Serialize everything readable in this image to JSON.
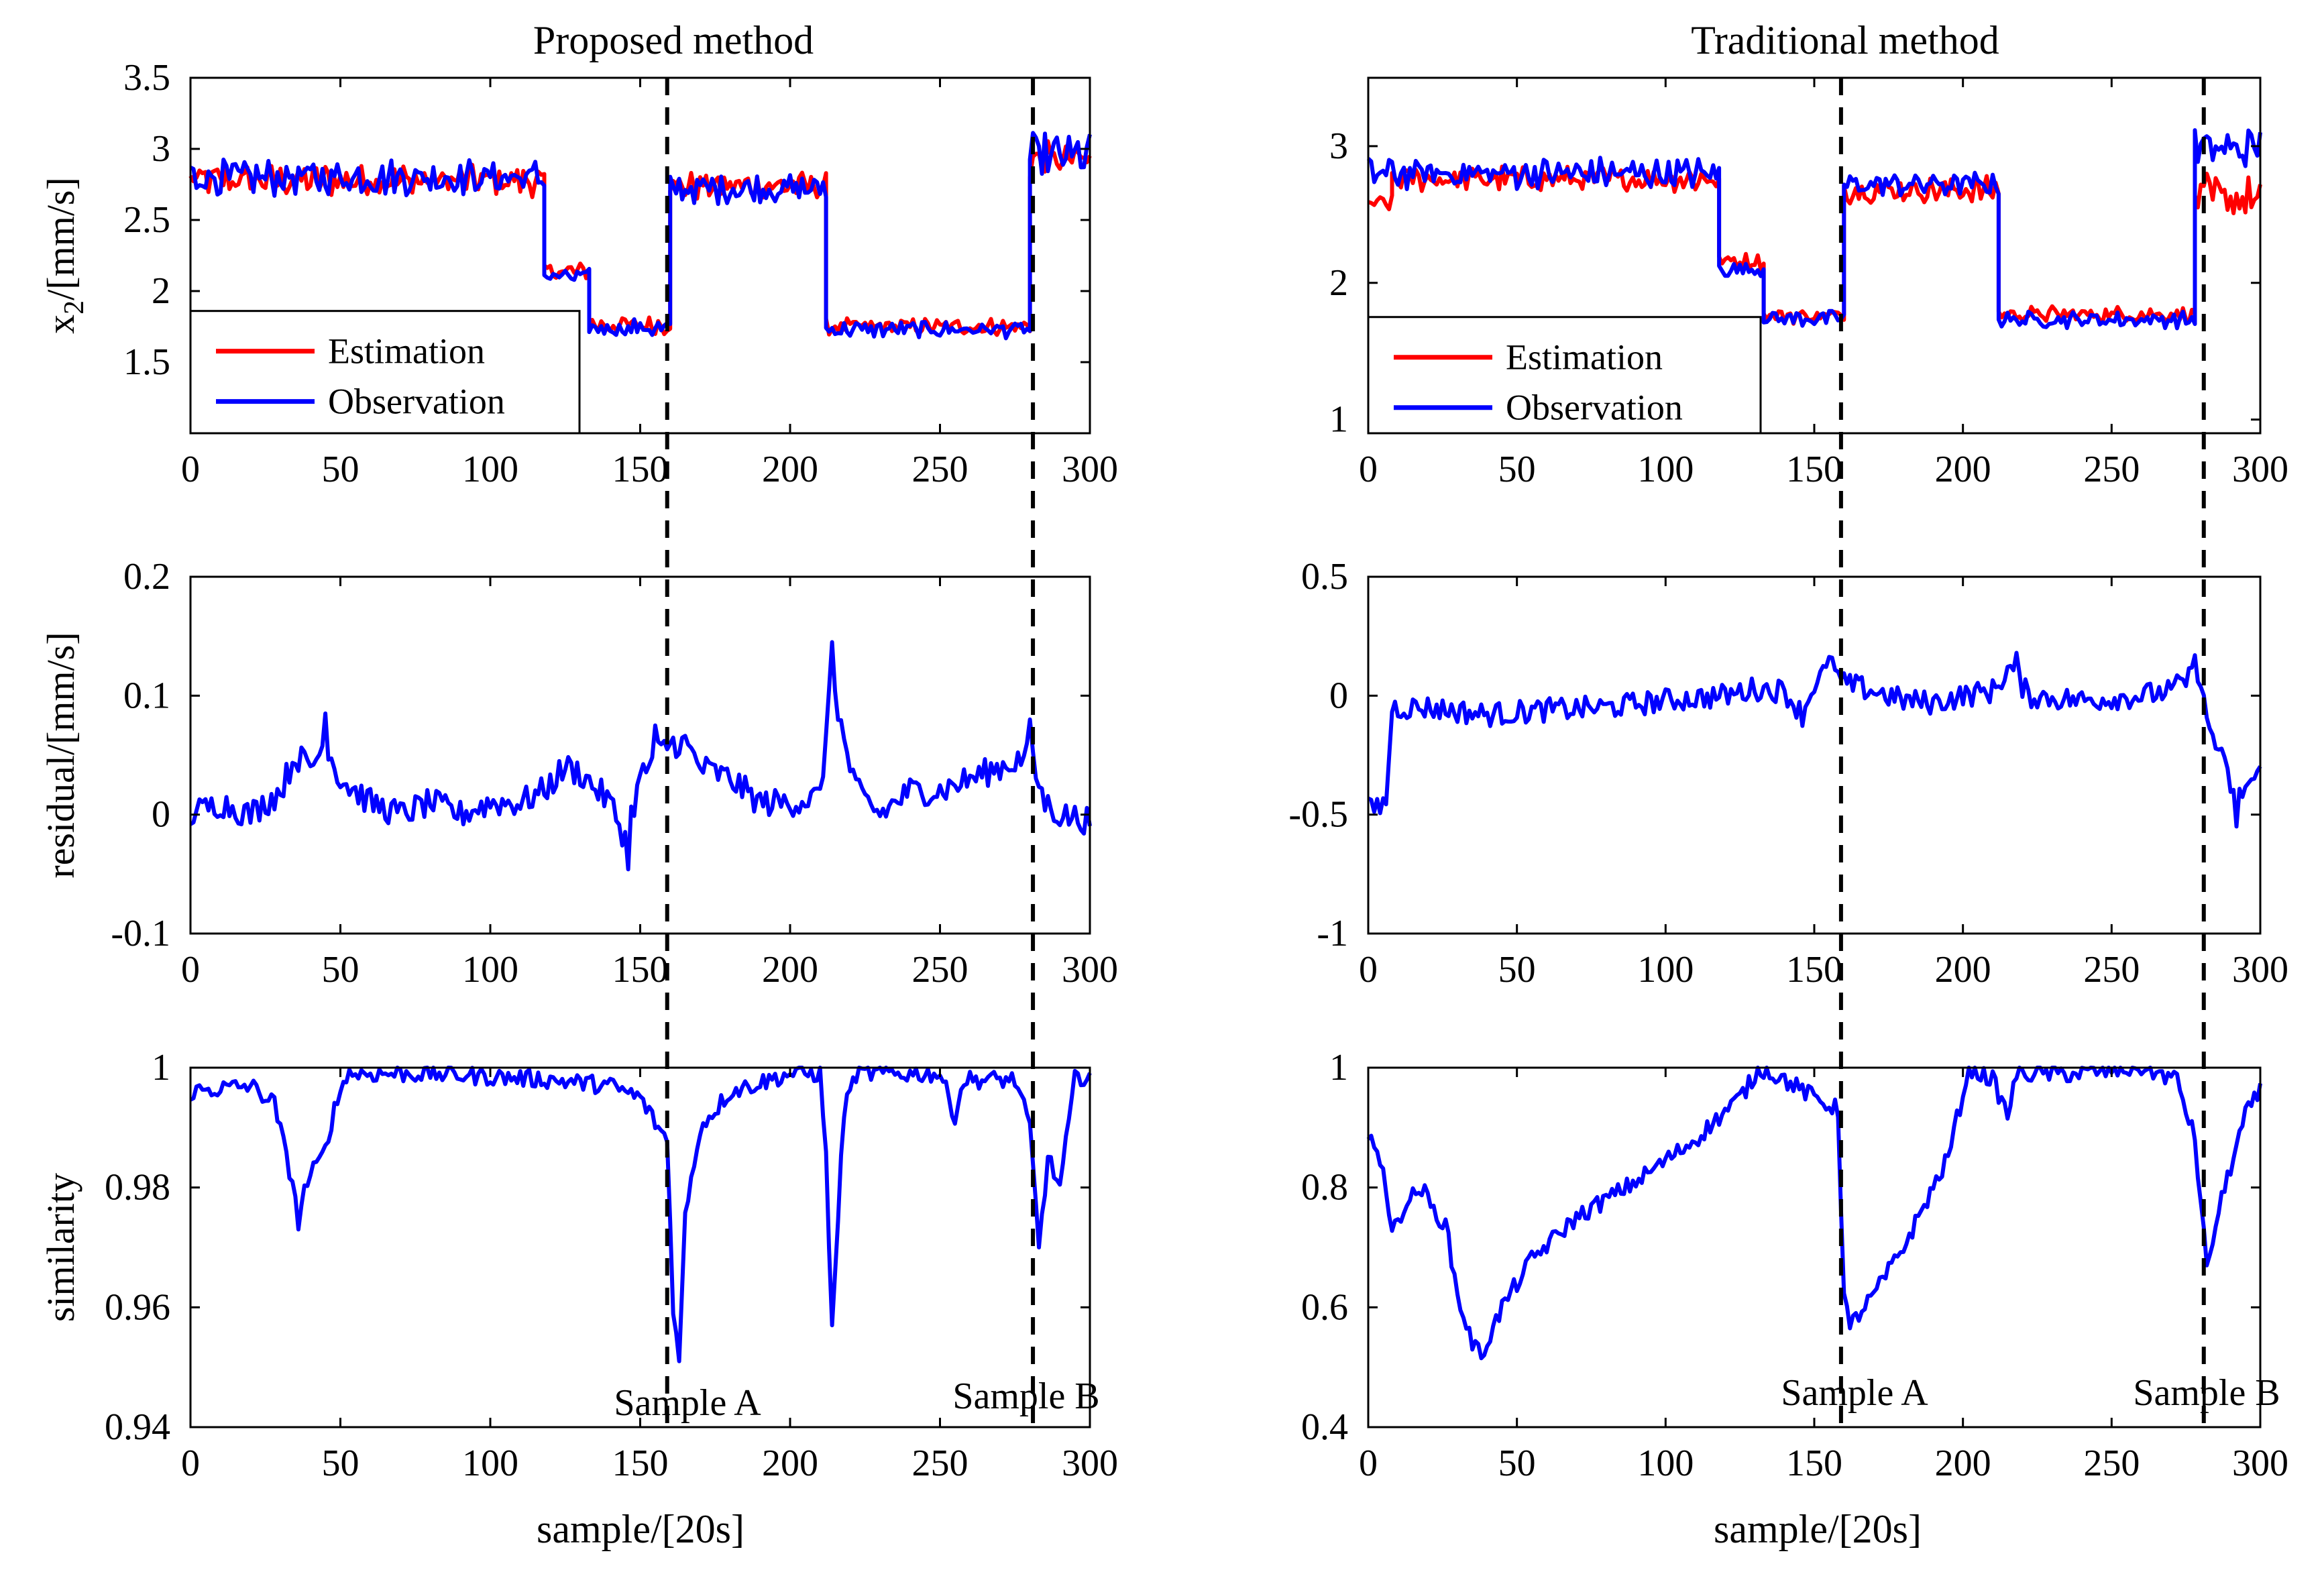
{
  "figure": {
    "title_left": "Proposed method",
    "title_right": "Traditional method",
    "xlabel": "sample/[20s]",
    "sample_a_label": "Sample A",
    "sample_b_label": "Sample B",
    "marker_x": [
      159,
      281
    ],
    "colors": {
      "estimation": "#ff0000",
      "observation": "#0000ff",
      "marker": "#000000"
    }
  },
  "chart_data": [
    {
      "id": "proposed-x2",
      "type": "line",
      "title": "Proposed method",
      "ylabel": "x_2/[mm/s]",
      "xlim": [
        0,
        300
      ],
      "ylim": [
        1.0,
        3.5
      ],
      "xticks": [
        0,
        50,
        100,
        150,
        200,
        250,
        300
      ],
      "yticks": [
        1.5,
        2,
        2.5,
        3,
        3.5
      ],
      "legend": {
        "position": "lower-left",
        "entries": [
          "Estimation",
          "Observation"
        ]
      },
      "series": [
        {
          "name": "Estimation",
          "color": "#ff0000",
          "segments": [
            [
              0,
              118,
              2.78,
              0.12
            ],
            [
              118,
              133,
              2.14,
              0.06
            ],
            [
              133,
              160,
              1.76,
              0.07
            ],
            [
              160,
              212,
              2.74,
              0.1
            ],
            [
              212,
              280,
              1.75,
              0.06
            ],
            [
              280,
              300,
              2.92,
              0.14
            ]
          ]
        },
        {
          "name": "Observation",
          "color": "#0000ff",
          "segments": [
            [
              0,
              118,
              2.8,
              0.13
            ],
            [
              118,
              133,
              2.1,
              0.06
            ],
            [
              133,
              160,
              1.74,
              0.07
            ],
            [
              160,
              212,
              2.72,
              0.11
            ],
            [
              212,
              280,
              1.73,
              0.06
            ],
            [
              280,
              300,
              2.95,
              0.16
            ]
          ]
        }
      ]
    },
    {
      "id": "traditional-x2",
      "type": "line",
      "title": "Traditional method",
      "ylabel": "",
      "xlim": [
        0,
        300
      ],
      "ylim": [
        0.9,
        3.5
      ],
      "xticks": [
        0,
        50,
        100,
        150,
        200,
        250,
        300
      ],
      "yticks": [
        1,
        2,
        3
      ],
      "legend": {
        "position": "lower-left",
        "entries": [
          "Estimation",
          "Observation"
        ]
      },
      "series": [
        {
          "name": "Estimation",
          "color": "#ff0000",
          "segments": [
            [
              0,
              8,
              2.58,
              0.06
            ],
            [
              8,
              118,
              2.76,
              0.1
            ],
            [
              118,
              133,
              2.16,
              0.06
            ],
            [
              133,
              160,
              1.76,
              0.06
            ],
            [
              160,
              212,
              2.68,
              0.1
            ],
            [
              212,
              278,
              1.77,
              0.06
            ],
            [
              278,
              300,
              2.62,
              0.18
            ]
          ]
        },
        {
          "name": "Observation",
          "color": "#0000ff",
          "segments": [
            [
              0,
              118,
              2.8,
              0.12
            ],
            [
              118,
              133,
              2.1,
              0.06
            ],
            [
              133,
              160,
              1.74,
              0.06
            ],
            [
              160,
              212,
              2.72,
              0.1
            ],
            [
              212,
              278,
              1.73,
              0.06
            ],
            [
              278,
              300,
              2.98,
              0.16
            ]
          ]
        }
      ]
    },
    {
      "id": "proposed-residual",
      "type": "line",
      "title": "",
      "ylabel": "residual/[mm/s]",
      "xlim": [
        0,
        300
      ],
      "ylim": [
        -0.1,
        0.2
      ],
      "xticks": [
        0,
        50,
        100,
        150,
        200,
        250,
        300
      ],
      "yticks": [
        -0.1,
        0,
        0.1,
        0.2
      ],
      "series": [
        {
          "name": "Residual",
          "color": "#0000ff",
          "anchors": [
            [
              0,
              0
            ],
            [
              10,
              0.01
            ],
            [
              20,
              0.0
            ],
            [
              30,
              0.02
            ],
            [
              35,
              0.05
            ],
            [
              40,
              0.04
            ],
            [
              45,
              0.06
            ],
            [
              50,
              0.03
            ],
            [
              60,
              0.01
            ],
            [
              70,
              0.0
            ],
            [
              80,
              0.01
            ],
            [
              90,
              0.0
            ],
            [
              100,
              0.01
            ],
            [
              110,
              0.01
            ],
            [
              118,
              0.02
            ],
            [
              125,
              0.04
            ],
            [
              130,
              0.035
            ],
            [
              140,
              0.01
            ],
            [
              145,
              -0.02
            ],
            [
              150,
              0.03
            ],
            [
              155,
              0.05
            ],
            [
              160,
              0.06
            ],
            [
              165,
              0.06
            ],
            [
              170,
              0.04
            ],
            [
              180,
              0.03
            ],
            [
              190,
              0.01
            ],
            [
              200,
              0.01
            ],
            [
              210,
              0.015
            ],
            [
              214,
              0.12
            ],
            [
              218,
              0.06
            ],
            [
              222,
              0.02
            ],
            [
              230,
              0.0
            ],
            [
              240,
              0.02
            ],
            [
              250,
              0.02
            ],
            [
              260,
              0.03
            ],
            [
              270,
              0.04
            ],
            [
              280,
              0.05
            ],
            [
              285,
              0.01
            ],
            [
              290,
              0.0
            ],
            [
              300,
              -0.005
            ]
          ],
          "noise": 0.012,
          "spikes": [
            [
              214,
              0.145
            ],
            [
              146,
              -0.046
            ],
            [
              280,
              0.08
            ],
            [
              155,
              0.075
            ],
            [
              45,
              0.085
            ]
          ]
        }
      ]
    },
    {
      "id": "traditional-residual",
      "type": "line",
      "title": "",
      "ylabel": "",
      "xlim": [
        0,
        300
      ],
      "ylim": [
        -1,
        0.5
      ],
      "xticks": [
        0,
        50,
        100,
        150,
        200,
        250,
        300
      ],
      "yticks": [
        -1,
        -0.5,
        0,
        0.5
      ],
      "series": [
        {
          "name": "Residual",
          "color": "#0000ff",
          "anchors": [
            [
              0,
              -0.48
            ],
            [
              6,
              -0.45
            ],
            [
              8,
              -0.05
            ],
            [
              20,
              -0.05
            ],
            [
              40,
              -0.08
            ],
            [
              60,
              -0.06
            ],
            [
              80,
              -0.05
            ],
            [
              100,
              -0.02
            ],
            [
              120,
              0.0
            ],
            [
              130,
              0.03
            ],
            [
              140,
              0.02
            ],
            [
              146,
              -0.08
            ],
            [
              150,
              0.05
            ],
            [
              155,
              0.12
            ],
            [
              160,
              0.05
            ],
            [
              170,
              0.02
            ],
            [
              180,
              -0.02
            ],
            [
              190,
              -0.03
            ],
            [
              200,
              0.0
            ],
            [
              210,
              0.02
            ],
            [
              216,
              0.12
            ],
            [
              222,
              0.0
            ],
            [
              240,
              -0.02
            ],
            [
              260,
              0.0
            ],
            [
              270,
              0.02
            ],
            [
              279,
              0.1
            ],
            [
              282,
              -0.1
            ],
            [
              288,
              -0.3
            ],
            [
              292,
              -0.45
            ],
            [
              295,
              -0.38
            ],
            [
              300,
              -0.33
            ]
          ],
          "noise": 0.05,
          "spikes": [
            [
              218,
              0.18
            ],
            [
              278,
              0.17
            ],
            [
              292,
              -0.55
            ],
            [
              156,
              0.16
            ]
          ]
        }
      ]
    },
    {
      "id": "proposed-similarity",
      "type": "line",
      "title": "",
      "ylabel": "similarity",
      "xlim": [
        0,
        300
      ],
      "ylim": [
        0.94,
        1.0
      ],
      "xticks": [
        0,
        50,
        100,
        150,
        200,
        250,
        300
      ],
      "yticks": [
        0.94,
        0.96,
        0.98,
        1
      ],
      "series": [
        {
          "name": "Similarity",
          "color": "#0000ff",
          "anchors": [
            [
              0,
              0.996
            ],
            [
              20,
              0.997
            ],
            [
              28,
              0.994
            ],
            [
              32,
              0.985
            ],
            [
              36,
              0.977
            ],
            [
              40,
              0.982
            ],
            [
              44,
              0.985
            ],
            [
              48,
              0.993
            ],
            [
              52,
              0.999
            ],
            [
              80,
              0.999
            ],
            [
              120,
              0.998
            ],
            [
              140,
              0.997
            ],
            [
              150,
              0.995
            ],
            [
              156,
              0.99
            ],
            [
              159,
              0.988
            ],
            [
              161,
              0.96
            ],
            [
              163,
              0.951
            ],
            [
              165,
              0.975
            ],
            [
              170,
              0.99
            ],
            [
              180,
              0.996
            ],
            [
              200,
              0.999
            ],
            [
              210,
              0.999
            ],
            [
              212,
              0.985
            ],
            [
              214,
              0.957
            ],
            [
              216,
              0.975
            ],
            [
              218,
              0.993
            ],
            [
              222,
              0.999
            ],
            [
              250,
              0.999
            ],
            [
              255,
              0.992
            ],
            [
              258,
              0.998
            ],
            [
              275,
              0.998
            ],
            [
              280,
              0.99
            ],
            [
              283,
              0.97
            ],
            [
              286,
              0.985
            ],
            [
              290,
              0.98
            ],
            [
              295,
              0.998
            ],
            [
              300,
              0.999
            ]
          ],
          "noise": 0.0015,
          "spikes": [
            [
              163,
              0.951
            ],
            [
              214,
              0.957
            ],
            [
              36,
              0.973
            ],
            [
              283,
              0.97
            ]
          ]
        }
      ]
    },
    {
      "id": "traditional-similarity",
      "type": "line",
      "title": "",
      "ylabel": "",
      "xlim": [
        0,
        300
      ],
      "ylim": [
        0.4,
        1.0
      ],
      "xticks": [
        0,
        50,
        100,
        150,
        200,
        250,
        300
      ],
      "yticks": [
        0.4,
        0.6,
        0.8,
        1
      ],
      "series": [
        {
          "name": "Similarity",
          "color": "#0000ff",
          "anchors": [
            [
              0,
              0.88
            ],
            [
              5,
              0.84
            ],
            [
              8,
              0.72
            ],
            [
              12,
              0.77
            ],
            [
              18,
              0.8
            ],
            [
              22,
              0.76
            ],
            [
              26,
              0.74
            ],
            [
              30,
              0.62
            ],
            [
              35,
              0.54
            ],
            [
              38,
              0.52
            ],
            [
              45,
              0.6
            ],
            [
              55,
              0.68
            ],
            [
              70,
              0.75
            ],
            [
              90,
              0.81
            ],
            [
              110,
              0.88
            ],
            [
              125,
              0.95
            ],
            [
              132,
              1.0
            ],
            [
              140,
              0.98
            ],
            [
              150,
              0.95
            ],
            [
              158,
              0.93
            ],
            [
              160,
              0.62
            ],
            [
              162,
              0.57
            ],
            [
              170,
              0.62
            ],
            [
              180,
              0.7
            ],
            [
              195,
              0.85
            ],
            [
              202,
              1.0
            ],
            [
              210,
              0.98
            ],
            [
              215,
              0.92
            ],
            [
              218,
              0.99
            ],
            [
              240,
              0.99
            ],
            [
              260,
              1.0
            ],
            [
              272,
              0.98
            ],
            [
              278,
              0.88
            ],
            [
              282,
              0.67
            ],
            [
              288,
              0.8
            ],
            [
              295,
              0.92
            ],
            [
              300,
              0.96
            ]
          ],
          "noise": 0.015,
          "spikes": [
            [
              162,
              0.565
            ],
            [
              38,
              0.515
            ],
            [
              282,
              0.67
            ]
          ]
        }
      ]
    }
  ]
}
